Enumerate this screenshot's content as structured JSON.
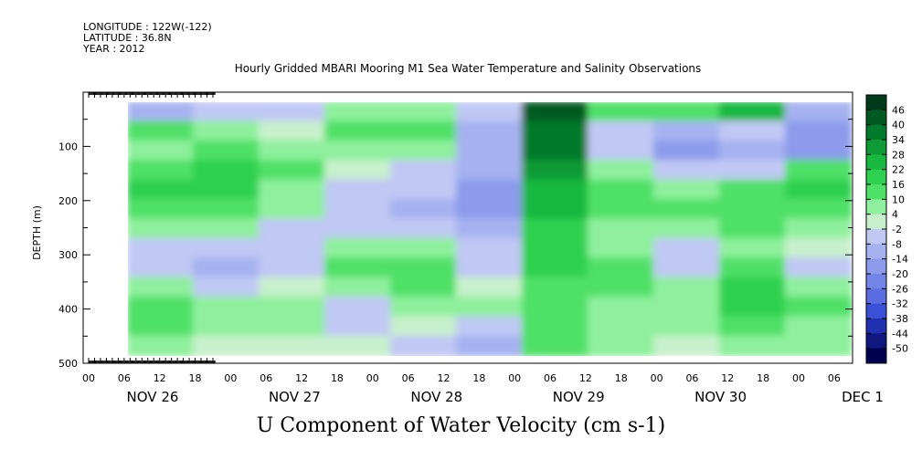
{
  "header": {
    "longitude": "LONGITUDE : 122W(-122)",
    "latitude": "LATITUDE : 36.8N",
    "year": "YEAR : 2012"
  },
  "chart_data": {
    "type": "heatmap",
    "title": "Hourly Gridded MBARI Mooring M1 Sea Water Temperature and Salinity Observations",
    "xlabel": "U Component of Water Velocity (cm s-1)",
    "ylabel": "DEPTH (m)",
    "ylim": [
      500,
      0
    ],
    "y_ticks": [
      100,
      200,
      300,
      400,
      500
    ],
    "x_hour_ticks": [
      "00",
      "06",
      "12",
      "18",
      "00",
      "06",
      "12",
      "18",
      "00",
      "06",
      "12",
      "18",
      "00",
      "06",
      "12",
      "18",
      "00",
      "06",
      "12",
      "18",
      "00",
      "06"
    ],
    "x_day_labels": [
      "NOV 26",
      "NOV 27",
      "NOV 28",
      "NOV 29",
      "NOV 30",
      "DEC  1"
    ],
    "colorbar": {
      "levels": [
        46,
        40,
        34,
        28,
        22,
        16,
        10,
        4,
        -2,
        -8,
        -14,
        -20,
        -26,
        -32,
        -38,
        -44,
        -50
      ],
      "tick_labels": [
        "46",
        "40",
        "34",
        "28",
        "22",
        "16",
        "10",
        "4",
        "-2",
        "-8",
        "-14",
        "-20",
        "-26",
        "-32",
        "-38",
        "-44",
        "-50"
      ],
      "colors": [
        "#003a1a",
        "#005a22",
        "#007a2c",
        "#0e9a34",
        "#18b840",
        "#2ed050",
        "#4fe068",
        "#8ef09c",
        "#c8f0cc",
        "#c0c8f4",
        "#a6b2f0",
        "#8c9bec",
        "#7383e6",
        "#5a6ce0",
        "#3a50d6",
        "#2030b0",
        "#101880",
        "#000050"
      ]
    },
    "series": [
      {
        "x": "Nov 26 06:00",
        "u": [
          -14,
          10,
          4,
          10,
          16,
          10,
          4,
          -8,
          -8,
          4,
          10,
          10,
          4
        ]
      },
      {
        "x": "Nov 26 18:00",
        "u": [
          -8,
          4,
          10,
          16,
          16,
          10,
          4,
          -8,
          -14,
          -8,
          4,
          4,
          -2
        ]
      },
      {
        "x": "Nov 27 06:00",
        "u": [
          -8,
          -2,
          4,
          10,
          4,
          4,
          -8,
          -8,
          -8,
          -2,
          4,
          4,
          -2
        ]
      },
      {
        "x": "Nov 27 18:00",
        "u": [
          4,
          10,
          4,
          -2,
          -8,
          -8,
          -8,
          4,
          10,
          4,
          -8,
          -8,
          -2
        ]
      },
      {
        "x": "Nov 28 06:00",
        "u": [
          4,
          10,
          4,
          -8,
          -8,
          -14,
          -8,
          4,
          10,
          10,
          4,
          -2,
          -8
        ]
      },
      {
        "x": "Nov 28 18:00",
        "u": [
          -8,
          -14,
          -14,
          -14,
          -20,
          -20,
          -14,
          -8,
          -8,
          -2,
          4,
          -8,
          -14
        ]
      },
      {
        "x": "Nov 29 06:00",
        "u": [
          40,
          34,
          34,
          28,
          22,
          22,
          16,
          16,
          16,
          10,
          10,
          10,
          10
        ]
      },
      {
        "x": "Nov 29 18:00",
        "u": [
          10,
          -8,
          -8,
          4,
          10,
          10,
          4,
          4,
          10,
          10,
          4,
          4,
          4
        ]
      },
      {
        "x": "Nov 30 06:00",
        "u": [
          10,
          -14,
          -20,
          -8,
          4,
          10,
          4,
          -8,
          -8,
          4,
          4,
          4,
          -2
        ]
      },
      {
        "x": "Nov 30 18:00",
        "u": [
          22,
          -8,
          -14,
          -8,
          10,
          10,
          10,
          4,
          10,
          16,
          16,
          10,
          4
        ]
      },
      {
        "x": "Dec 1 06:00",
        "u": [
          -14,
          -20,
          -20,
          10,
          16,
          10,
          4,
          -2,
          -8,
          4,
          10,
          4,
          4
        ]
      }
    ]
  }
}
